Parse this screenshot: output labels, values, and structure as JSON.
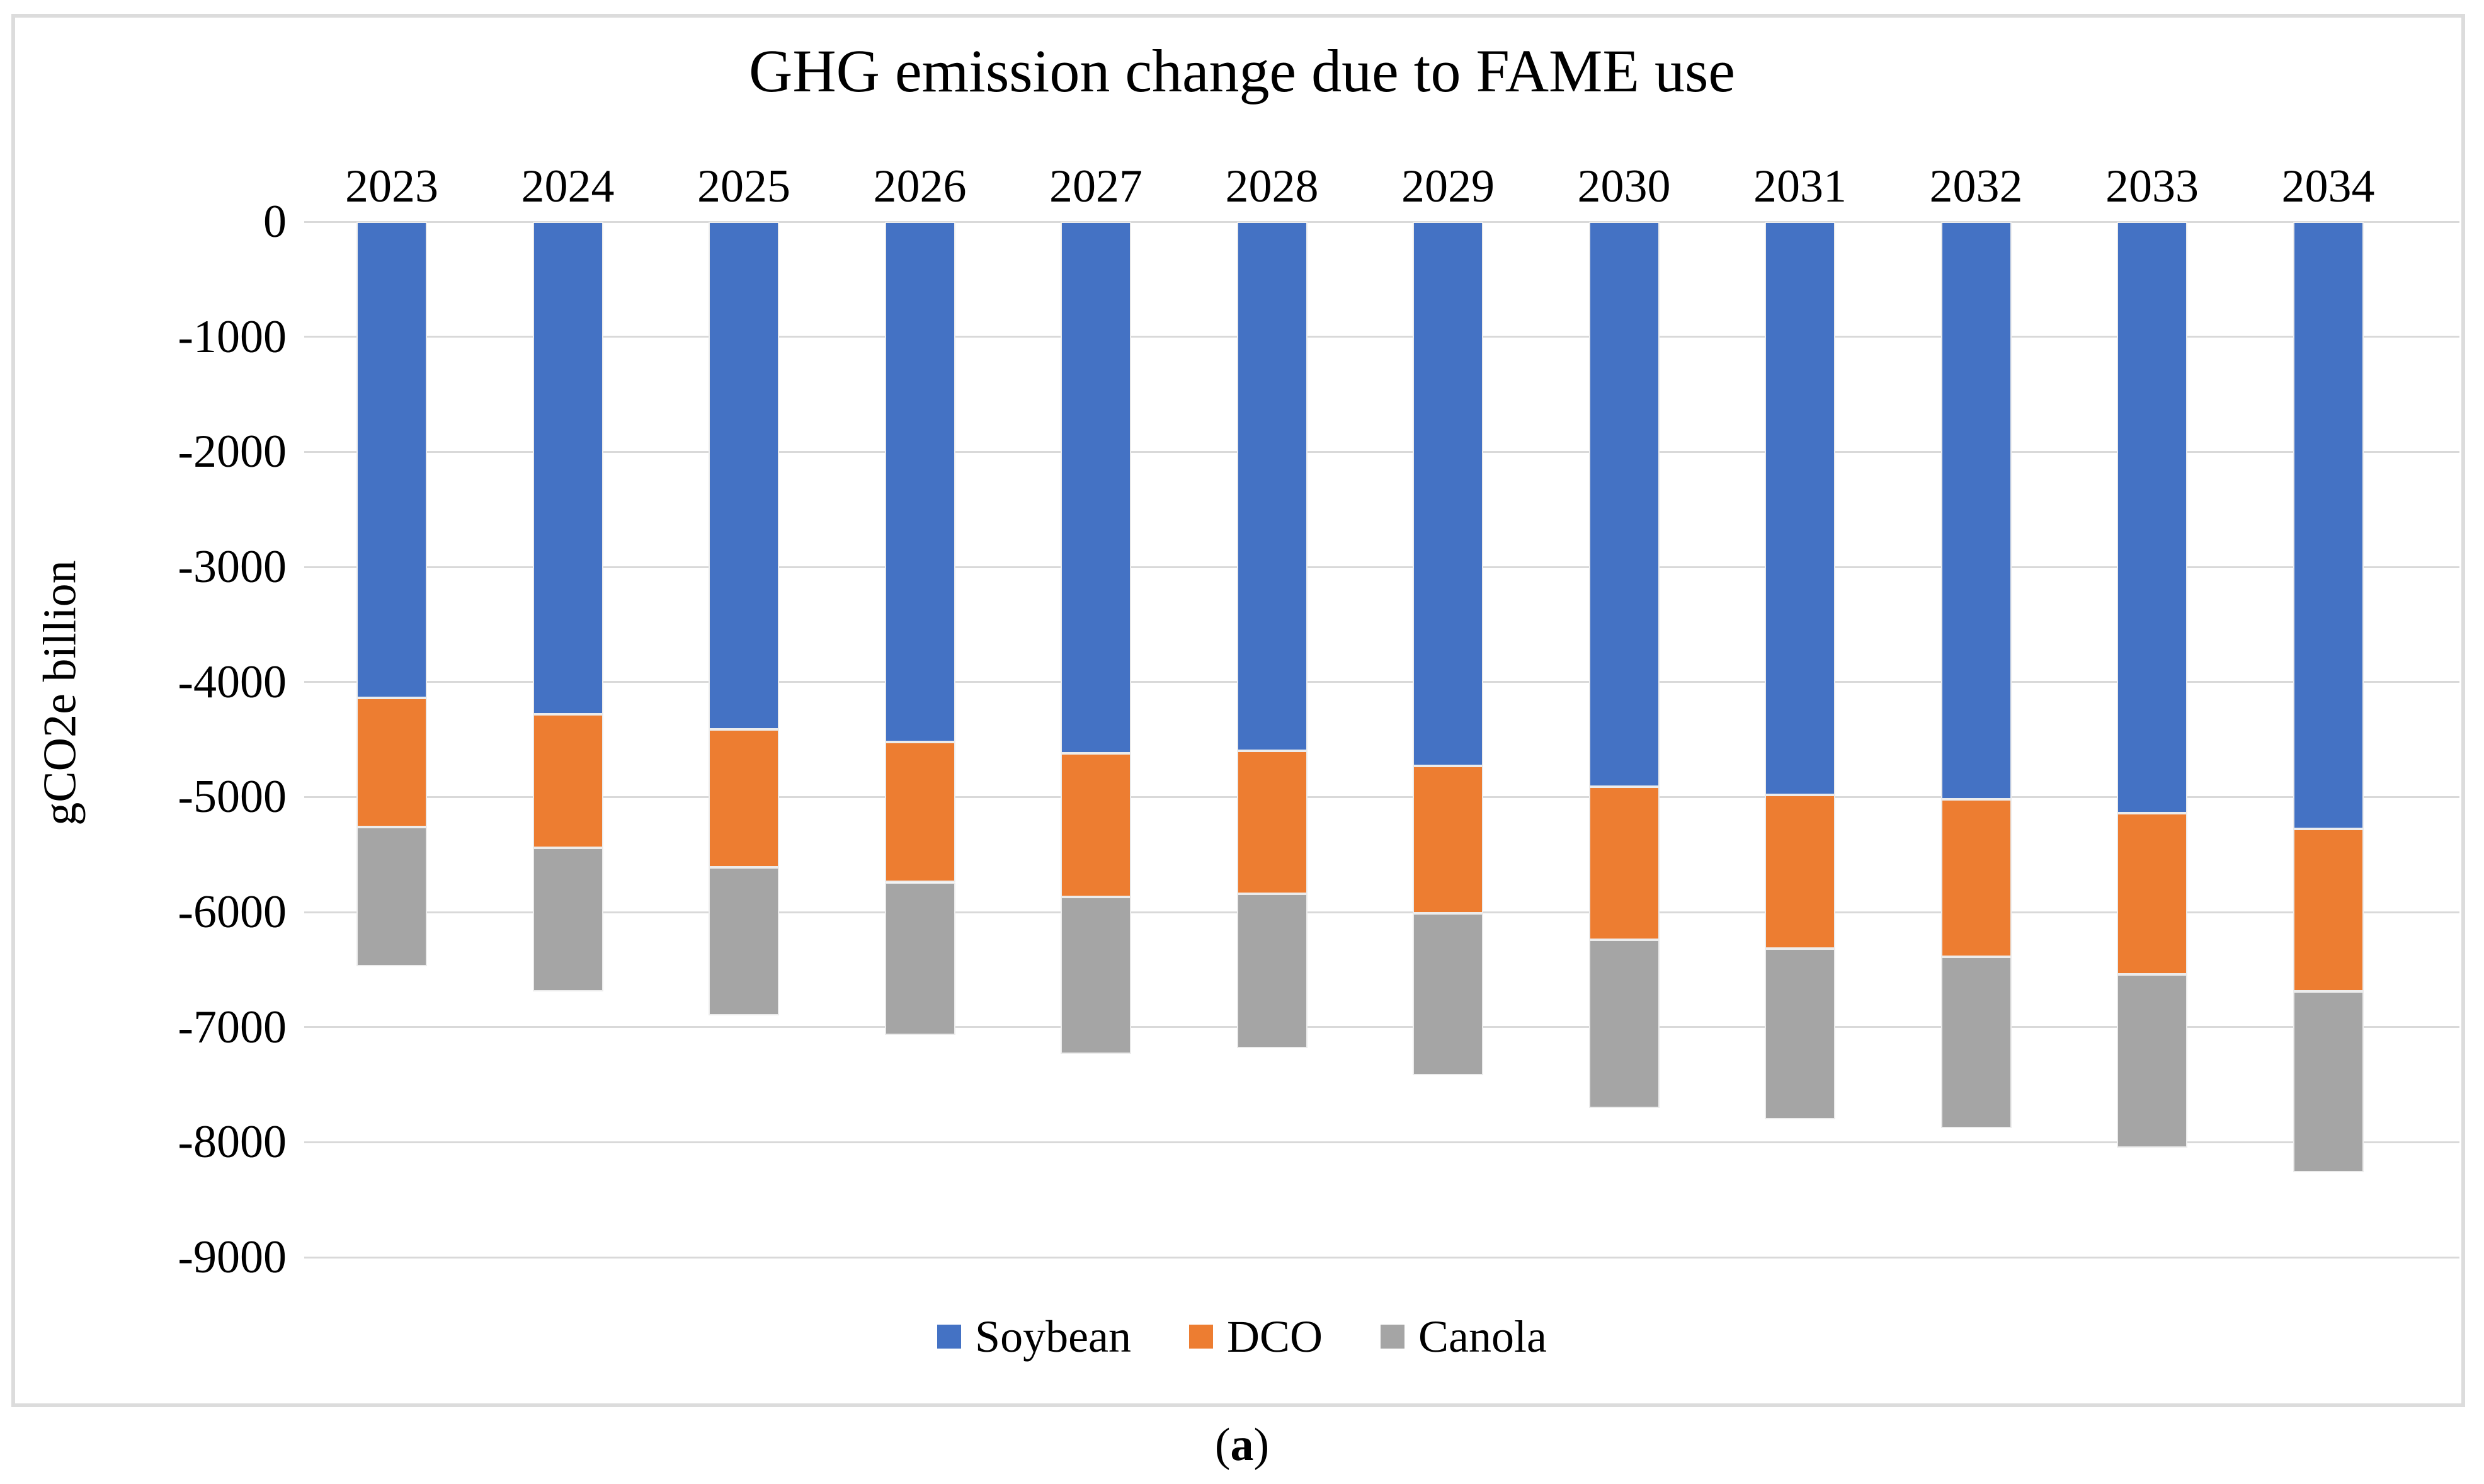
{
  "chart_data": {
    "type": "bar",
    "stacked": true,
    "title": "GHG emission change due to FAME use",
    "ylabel": "gCO2e billion",
    "xlabel": "",
    "categories": [
      "2023",
      "2024",
      "2025",
      "2026",
      "2027",
      "2028",
      "2029",
      "2030",
      "2031",
      "2032",
      "2033",
      "2034"
    ],
    "series": [
      {
        "name": "Soybean",
        "color": "#4472C4",
        "values": [
          -4140,
          -4280,
          -4410,
          -4520,
          -4620,
          -4600,
          -4730,
          -4910,
          -4980,
          -5020,
          -5140,
          -5280
        ]
      },
      {
        "name": "DCO",
        "color": "#ED7D31",
        "values": [
          -1120,
          -1160,
          -1200,
          -1220,
          -1250,
          -1240,
          -1280,
          -1330,
          -1340,
          -1370,
          -1400,
          -1410
        ]
      },
      {
        "name": "Canola",
        "color": "#A5A5A5",
        "values": [
          -1210,
          -1250,
          -1290,
          -1330,
          -1360,
          -1340,
          -1410,
          -1460,
          -1480,
          -1490,
          -1510,
          -1570
        ]
      }
    ],
    "stack_totals": [
      -6470,
      -6690,
      -6900,
      -7070,
      -7230,
      -7180,
      -7420,
      -7700,
      -7800,
      -7880,
      -8050,
      -8260
    ],
    "ylim": [
      -9000,
      0
    ],
    "yticks": [
      0,
      -1000,
      -2000,
      -3000,
      -4000,
      -5000,
      -6000,
      -7000,
      -8000,
      -9000
    ],
    "ytick_labels": [
      "0",
      "-1000",
      "-2000",
      "-3000",
      "-4000",
      "-5000",
      "-6000",
      "-7000",
      "-8000",
      "-9000"
    ],
    "grid": true,
    "grid_color": "#D9D9D9",
    "legend_position": "bottom",
    "x_axis_position": "top"
  },
  "caption": {
    "open": "(",
    "letter": "a",
    "close": ")"
  }
}
